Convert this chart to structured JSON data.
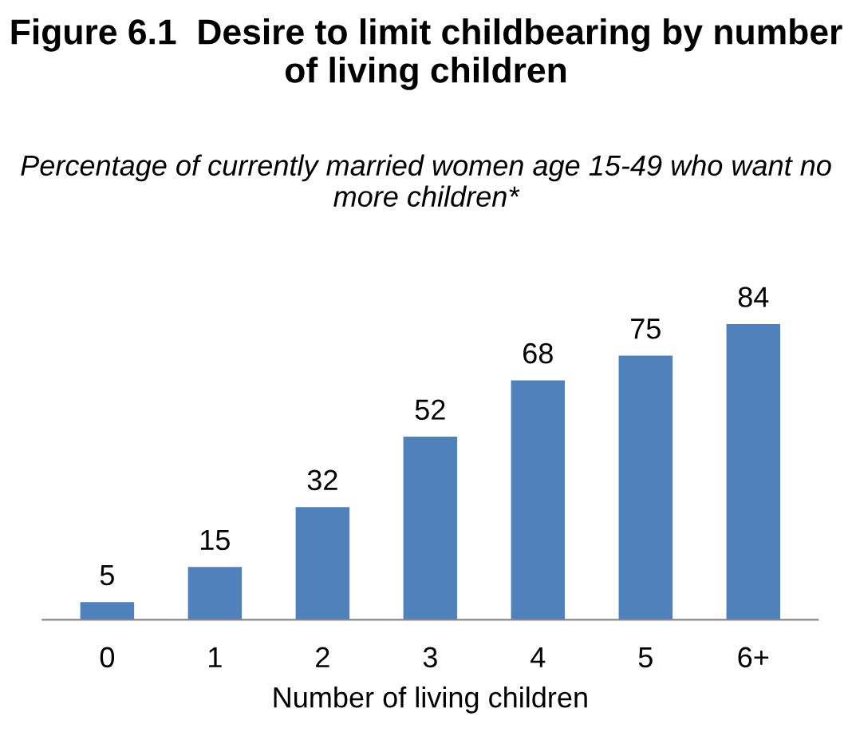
{
  "chart_data": {
    "type": "bar",
    "title": "Figure 6.1  Desire to limit childbearing by number of living children",
    "subtitle": "Percentage of currently married women age 15-49 who want no more children*",
    "xlabel": "Number of living children",
    "categories": [
      "0",
      "1",
      "2",
      "3",
      "4",
      "5",
      "6+"
    ],
    "values": [
      5,
      15,
      32,
      52,
      68,
      75,
      84
    ],
    "color": "#4f81bd",
    "data_labels": true,
    "grid": false,
    "legend": false
  }
}
